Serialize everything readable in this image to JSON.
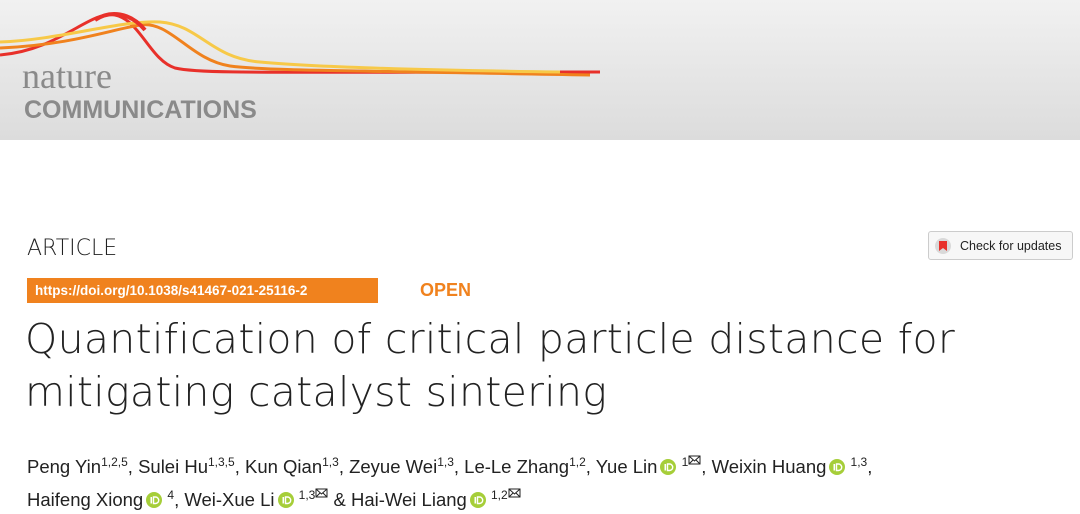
{
  "header": {
    "logo_top": "nature",
    "logo_bottom": "COMMUNICATIONS"
  },
  "article_type": "ARTICLE",
  "check_updates": "Check for updates",
  "doi": "https://doi.org/10.1038/s41467-021-25116-2",
  "access": "OPEN",
  "title_lines": [
    "Quantification of critical particle distance for",
    "mitigating catalyst sintering"
  ],
  "separator": ",",
  "conjunction": "&",
  "author_lines": [
    [
      {
        "name": "Peng Yin",
        "affiliations": "1,2,5",
        "orcid": false,
        "corresponding": false
      },
      {
        "name": "Sulei Hu",
        "affiliations": "1,3,5",
        "orcid": false,
        "corresponding": false
      },
      {
        "name": "Kun Qian",
        "affiliations": "1,3",
        "orcid": false,
        "corresponding": false
      },
      {
        "name": "Zeyue Wei",
        "affiliations": "1,3",
        "orcid": false,
        "corresponding": false
      },
      {
        "name": "Le-Le Zhang",
        "affiliations": "1,2",
        "orcid": false,
        "corresponding": false
      },
      {
        "name": "Yue Lin",
        "affiliations": "1",
        "orcid": true,
        "corresponding": true
      },
      {
        "name": "Weixin Huang",
        "affiliations": "1,3",
        "orcid": true,
        "corresponding": false
      }
    ],
    [
      {
        "name": "Haifeng Xiong",
        "affiliations": "4",
        "orcid": true,
        "corresponding": false
      },
      {
        "name": "Wei-Xue Li",
        "affiliations": "1,3",
        "orcid": true,
        "corresponding": true
      },
      {
        "name": "Hai-Wei Liang",
        "affiliations": "1,2",
        "orcid": true,
        "corresponding": true
      }
    ]
  ]
}
